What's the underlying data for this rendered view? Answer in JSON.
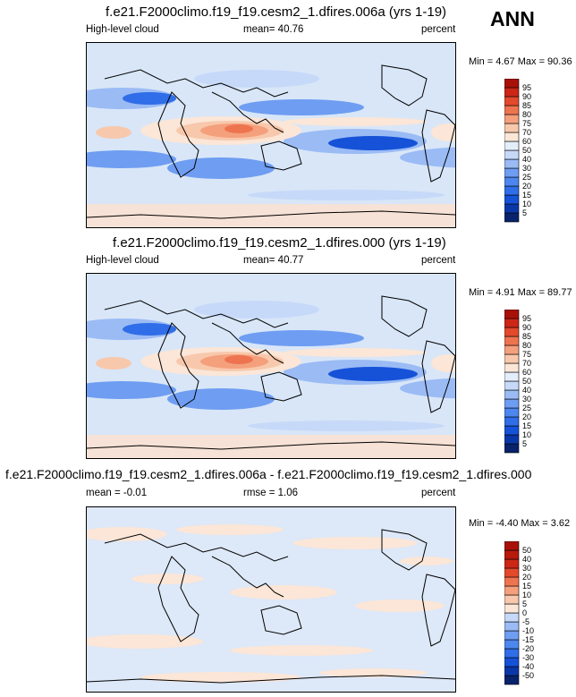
{
  "season": "ANN",
  "panels": [
    {
      "id": "top",
      "title": "f.e21.F2000climo.f19_f19.cesm2_1.dfires.006a (yrs 1-19)",
      "left_label": "High-level cloud",
      "center_label": "mean=  40.76",
      "right_label": "percent",
      "minmax": "Min =   4.67 Max =  90.36"
    },
    {
      "id": "middle",
      "title": "f.e21.F2000climo.f19_f19.cesm2_1.dfires.000 (yrs 1-19)",
      "left_label": "High-level cloud",
      "center_label": "mean=  40.77",
      "right_label": "percent",
      "minmax": "Min =  4.91 Max =  89.77"
    },
    {
      "id": "diff",
      "title": "f.e21.F2000climo.f19_f19.cesm2_1.dfires.006a - f.e21.F2000climo.f19_f19.cesm2_1.dfires.000",
      "left_label": "mean = -0.01",
      "center_label": "rmse =   1.06",
      "right_label": "percent",
      "minmax": "Min =  -4.40 Max =   3.62"
    }
  ],
  "chart_data": [
    {
      "type": "heatmap",
      "title": "f.e21.F2000climo.f19_f19.cesm2_1.dfires.006a (yrs 1-19)",
      "variable": "High-level cloud",
      "units": "percent",
      "mean": 40.76,
      "min": 4.67,
      "max": 90.36,
      "colorbar_levels": [
        5,
        10,
        15,
        20,
        25,
        30,
        40,
        50,
        60,
        70,
        75,
        80,
        85,
        90,
        95
      ],
      "colors": [
        "#08226b",
        "#0a37a8",
        "#1552d8",
        "#2f6ee8",
        "#4c86ee",
        "#6e9df2",
        "#9bbbf5",
        "#c6d9f8",
        "#e4eefb",
        "#fbe6d7",
        "#f8c8ac",
        "#f4a07c",
        "#ee7450",
        "#e4492c",
        "#cc2616",
        "#a81108"
      ]
    },
    {
      "type": "heatmap",
      "title": "f.e21.F2000climo.f19_f19.cesm2_1.dfires.000 (yrs 1-19)",
      "variable": "High-level cloud",
      "units": "percent",
      "mean": 40.77,
      "min": 4.91,
      "max": 89.77,
      "colorbar_levels": [
        5,
        10,
        15,
        20,
        25,
        30,
        40,
        50,
        60,
        70,
        75,
        80,
        85,
        90,
        95
      ],
      "colors": [
        "#08226b",
        "#0a37a8",
        "#1552d8",
        "#2f6ee8",
        "#4c86ee",
        "#6e9df2",
        "#9bbbf5",
        "#c6d9f8",
        "#e4eefb",
        "#fbe6d7",
        "#f8c8ac",
        "#f4a07c",
        "#ee7450",
        "#e4492c",
        "#cc2616",
        "#a81108"
      ]
    },
    {
      "type": "heatmap",
      "title": "f.e21.F2000climo.f19_f19.cesm2_1.dfires.006a - f.e21.F2000climo.f19_f19.cesm2_1.dfires.000",
      "units": "percent",
      "mean": -0.01,
      "rmse": 1.06,
      "min": -4.4,
      "max": 3.62,
      "colorbar_levels": [
        -50,
        -40,
        -30,
        -20,
        -15,
        -10,
        -5,
        0,
        5,
        10,
        15,
        20,
        30,
        40,
        50
      ],
      "colors": [
        "#08226b",
        "#0a37a8",
        "#1552d8",
        "#2f6ee8",
        "#4c86ee",
        "#6e9df2",
        "#9bbbf5",
        "#c6d9f8",
        "#fbe6d7",
        "#f8c8ac",
        "#f4a07c",
        "#ee7450",
        "#e4492c",
        "#cc2616",
        "#b81a0c",
        "#a81108"
      ]
    }
  ]
}
